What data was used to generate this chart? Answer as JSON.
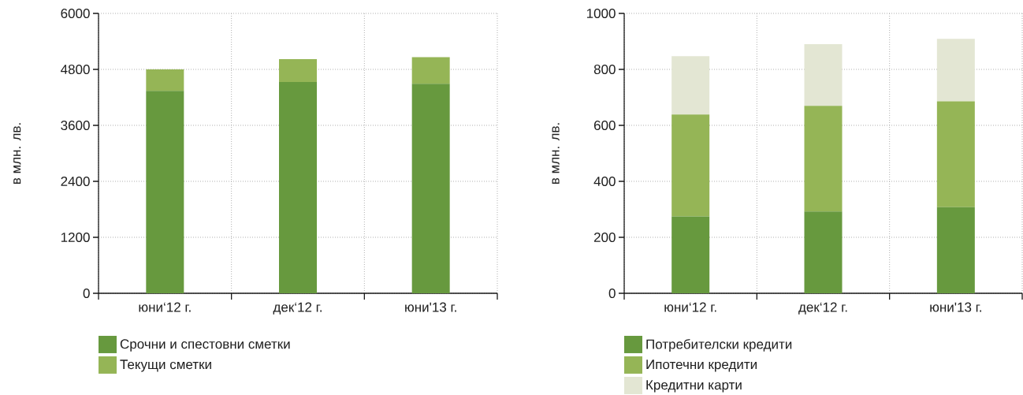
{
  "chart_data": [
    {
      "type": "bar",
      "stacked": true,
      "categories": [
        "юни‘12 г.",
        "дек‘12 г.",
        "юни'13 г."
      ],
      "ylabel": "в млн. лв.",
      "ylim": [
        0,
        6000
      ],
      "yticks": [
        0,
        1200,
        2400,
        3600,
        4800,
        6000
      ],
      "grid": true,
      "legend": "bottom left",
      "series": [
        {
          "name": "Срочни и спестовни сметки",
          "color": "#67993e",
          "values": [
            4340,
            4530,
            4490
          ]
        },
        {
          "name": "Текущи сметки",
          "color": "#95b556",
          "values": [
            460,
            490,
            570
          ]
        }
      ]
    },
    {
      "type": "bar",
      "stacked": true,
      "categories": [
        "юни‘12 г.",
        "дек‘12 г.",
        "юни'13 г."
      ],
      "ylabel": "в млн. лв.",
      "ylim": [
        0,
        1000
      ],
      "yticks": [
        0,
        200,
        400,
        600,
        800,
        1000
      ],
      "grid": true,
      "legend": "bottom left",
      "series": [
        {
          "name": "Потребителски кредити",
          "color": "#67993e",
          "values": [
            275,
            292,
            308
          ]
        },
        {
          "name": "Ипотечни кредити",
          "color": "#95b556",
          "values": [
            364,
            378,
            378
          ]
        },
        {
          "name": "Кредитни карти",
          "color": "#e3e6d3",
          "values": [
            208,
            220,
            223
          ]
        }
      ]
    }
  ]
}
